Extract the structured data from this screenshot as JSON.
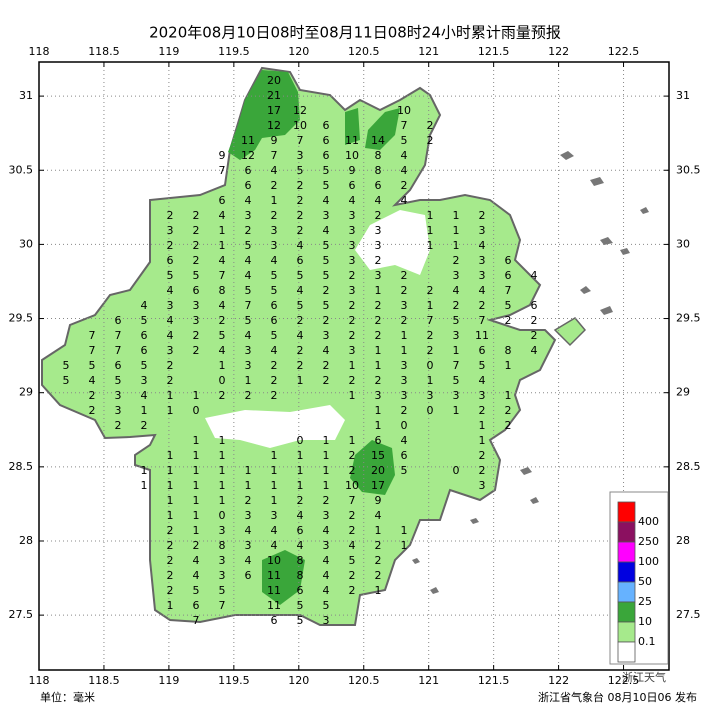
{
  "title": "2020年08月10日08时至08月11日08时24小时累计雨量预报",
  "unit": "单位：毫米",
  "issuer": "浙江省气象台 08月10日06 发布",
  "watermark": "浙江天气",
  "map": {
    "xlim": [
      118,
      122.85
    ],
    "ylim": [
      27.13,
      31.23
    ],
    "xticks": [
      118,
      118.5,
      119,
      119.5,
      120,
      120.5,
      121,
      121.5,
      122,
      122.5
    ],
    "yticks": [
      31,
      30.5,
      30,
      29.5,
      29,
      28.5,
      28,
      27.5
    ],
    "grid": true,
    "rows": [
      [
        null,
        null,
        null,
        null,
        null,
        null,
        null,
        null,
        20
      ],
      [
        null,
        null,
        null,
        null,
        null,
        null,
        null,
        null,
        21
      ],
      [
        null,
        null,
        null,
        null,
        null,
        null,
        null,
        null,
        17,
        12,
        null,
        null,
        null,
        10
      ],
      [
        null,
        null,
        null,
        null,
        null,
        null,
        null,
        null,
        12,
        10,
        6,
        null,
        null,
        7,
        2
      ],
      [
        null,
        null,
        null,
        null,
        null,
        null,
        null,
        11,
        9,
        7,
        6,
        11,
        14,
        5,
        2
      ],
      [
        null,
        null,
        null,
        null,
        null,
        null,
        9,
        12,
        7,
        3,
        6,
        10,
        8,
        4
      ],
      [
        null,
        null,
        null,
        null,
        null,
        null,
        7,
        6,
        4,
        5,
        5,
        9,
        8,
        4
      ],
      [
        null,
        null,
        null,
        null,
        null,
        null,
        null,
        6,
        2,
        2,
        5,
        6,
        6,
        2
      ],
      [
        null,
        null,
        null,
        null,
        null,
        null,
        6,
        4,
        1,
        2,
        4,
        4,
        4,
        4
      ],
      [
        null,
        null,
        null,
        null,
        2,
        2,
        4,
        3,
        2,
        2,
        3,
        3,
        2,
        null,
        1,
        1,
        2
      ],
      [
        null,
        null,
        null,
        null,
        3,
        2,
        1,
        2,
        3,
        2,
        4,
        3,
        3,
        null,
        1,
        1,
        3
      ],
      [
        null,
        null,
        null,
        null,
        2,
        2,
        1,
        5,
        3,
        4,
        5,
        3,
        3,
        null,
        1,
        1,
        4
      ],
      [
        null,
        null,
        null,
        null,
        6,
        2,
        4,
        4,
        4,
        6,
        5,
        3,
        2,
        null,
        null,
        2,
        3,
        6
      ],
      [
        null,
        null,
        null,
        null,
        5,
        5,
        7,
        4,
        5,
        5,
        5,
        2,
        3,
        2,
        null,
        3,
        3,
        6,
        4
      ],
      [
        null,
        null,
        null,
        null,
        4,
        6,
        8,
        5,
        5,
        4,
        2,
        3,
        1,
        2,
        2,
        4,
        4,
        7
      ],
      [
        null,
        null,
        null,
        4,
        3,
        3,
        4,
        7,
        6,
        5,
        5,
        2,
        2,
        3,
        1,
        2,
        2,
        5,
        6
      ],
      [
        null,
        null,
        6,
        5,
        4,
        3,
        2,
        5,
        6,
        2,
        2,
        2,
        2,
        2,
        7,
        5,
        7,
        2,
        2
      ],
      [
        null,
        7,
        7,
        6,
        4,
        2,
        5,
        4,
        5,
        4,
        3,
        2,
        2,
        1,
        2,
        3,
        11,
        null,
        2
      ],
      [
        null,
        7,
        7,
        6,
        3,
        2,
        4,
        3,
        4,
        2,
        4,
        3,
        1,
        1,
        2,
        1,
        6,
        8,
        4
      ],
      [
        5,
        5,
        6,
        5,
        2,
        null,
        1,
        3,
        2,
        2,
        2,
        1,
        1,
        3,
        0,
        7,
        5,
        1
      ],
      [
        5,
        4,
        5,
        3,
        2,
        null,
        0,
        1,
        2,
        1,
        2,
        2,
        2,
        3,
        1,
        5,
        4
      ],
      [
        null,
        2,
        3,
        4,
        1,
        1,
        2,
        2,
        2,
        null,
        null,
        1,
        3,
        3,
        3,
        3,
        3,
        1
      ],
      [
        null,
        2,
        3,
        1,
        1,
        0,
        null,
        null,
        null,
        null,
        null,
        null,
        1,
        2,
        0,
        1,
        2,
        2
      ],
      [
        null,
        null,
        2,
        2,
        null,
        null,
        null,
        null,
        null,
        null,
        null,
        null,
        1,
        0,
        null,
        null,
        1,
        2
      ],
      [
        null,
        null,
        null,
        null,
        null,
        1,
        1,
        null,
        null,
        0,
        1,
        1,
        6,
        4,
        null,
        null,
        1
      ],
      [
        null,
        null,
        null,
        null,
        1,
        1,
        1,
        null,
        1,
        1,
        1,
        2,
        15,
        6,
        null,
        null,
        2
      ],
      [
        null,
        null,
        null,
        1,
        1,
        1,
        1,
        1,
        1,
        1,
        1,
        2,
        20,
        5,
        null,
        0,
        2
      ],
      [
        null,
        null,
        null,
        1,
        1,
        1,
        1,
        1,
        1,
        1,
        1,
        10,
        17,
        null,
        null,
        null,
        3
      ],
      [
        null,
        null,
        null,
        null,
        1,
        1,
        1,
        2,
        1,
        2,
        2,
        7,
        9
      ],
      [
        null,
        null,
        null,
        null,
        1,
        1,
        0,
        3,
        3,
        4,
        3,
        2,
        4
      ],
      [
        null,
        null,
        null,
        null,
        2,
        1,
        3,
        4,
        4,
        6,
        4,
        2,
        1,
        1
      ],
      [
        null,
        null,
        null,
        null,
        2,
        2,
        8,
        3,
        4,
        4,
        3,
        4,
        2,
        1
      ],
      [
        null,
        null,
        null,
        null,
        2,
        4,
        3,
        4,
        10,
        8,
        4,
        5,
        2
      ],
      [
        null,
        null,
        null,
        null,
        2,
        4,
        3,
        6,
        11,
        8,
        4,
        2,
        2
      ],
      [
        null,
        null,
        null,
        null,
        2,
        5,
        5,
        null,
        11,
        6,
        4,
        2,
        1
      ],
      [
        null,
        null,
        null,
        null,
        1,
        6,
        7,
        null,
        11,
        5,
        5
      ],
      [
        null,
        null,
        null,
        null,
        null,
        7,
        null,
        null,
        6,
        5,
        3
      ]
    ]
  },
  "legend": {
    "levels": [
      400,
      250,
      100,
      50,
      25,
      10,
      0.1
    ],
    "colors": [
      "#ff0000",
      "#8b1060",
      "#ff00ff",
      "#0000e0",
      "#66b2ff",
      "#3aa63a",
      "#a6ea8c",
      "#ffffff"
    ]
  }
}
